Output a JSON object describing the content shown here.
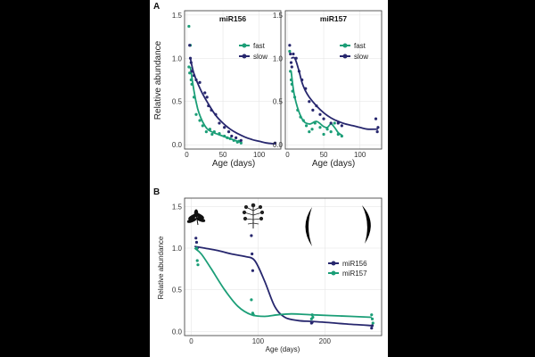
{
  "colors": {
    "fast": "#1b9e77",
    "slow": "#27276e",
    "miR156": "#27276e",
    "miR157": "#1b9e77"
  },
  "panel_labels": {
    "a": "A",
    "b": "B"
  },
  "chart_data": [
    {
      "id": "A1",
      "type": "scatter",
      "title": "miR156",
      "xlabel": "Age (days)",
      "ylabel": "Relative abundance",
      "xlim": [
        -3,
        130
      ],
      "ylim": [
        -0.05,
        1.55
      ],
      "xticks": [
        0,
        50,
        100
      ],
      "yticks": [
        0.0,
        0.5,
        1.0,
        1.5
      ],
      "yticklabels": [
        "0.0",
        "0.5",
        "1.0",
        "1.5"
      ],
      "legend_position": "top-right",
      "series": [
        {
          "name": "fast",
          "color": "#1b9e77",
          "x": [
            3,
            3,
            4,
            5,
            6,
            7,
            10,
            13,
            18,
            22,
            27,
            32,
            35,
            38,
            45,
            52,
            56,
            60,
            65,
            70,
            72,
            75
          ],
          "y": [
            1.37,
            0.9,
            0.83,
            1.15,
            0.75,
            0.7,
            0.55,
            0.35,
            0.28,
            0.22,
            0.15,
            0.18,
            0.12,
            0.15,
            0.13,
            0.1,
            0.08,
            0.07,
            0.05,
            0.03,
            0.04,
            0.02
          ],
          "fit_x": [
            5,
            10,
            15,
            20,
            25,
            30,
            40,
            50,
            60,
            70,
            75
          ],
          "fit_y": [
            0.9,
            0.62,
            0.42,
            0.3,
            0.22,
            0.17,
            0.13,
            0.1,
            0.07,
            0.04,
            0.03
          ]
        },
        {
          "name": "slow",
          "color": "#27276e",
          "x": [
            4,
            5,
            6,
            7,
            10,
            13,
            18,
            25,
            28,
            30,
            34,
            40,
            45,
            52,
            58,
            62,
            68,
            75,
            122
          ],
          "y": [
            1.15,
            1.0,
            0.95,
            0.85,
            0.8,
            0.75,
            0.72,
            0.6,
            0.55,
            0.45,
            0.4,
            0.35,
            0.25,
            0.2,
            0.15,
            0.1,
            0.08,
            0.05,
            0.02
          ],
          "fit_x": [
            5,
            10,
            20,
            30,
            40,
            50,
            60,
            70,
            80,
            90,
            100,
            110,
            122
          ],
          "fit_y": [
            1.0,
            0.82,
            0.62,
            0.47,
            0.34,
            0.25,
            0.18,
            0.13,
            0.09,
            0.06,
            0.04,
            0.02,
            0.01
          ]
        }
      ]
    },
    {
      "id": "A2",
      "type": "scatter",
      "title": "miR157",
      "xlabel": "Age (days)",
      "ylabel": "",
      "xlim": [
        -3,
        130
      ],
      "ylim": [
        -0.05,
        1.55
      ],
      "xticks": [
        0,
        50,
        100
      ],
      "yticks": [
        0.0,
        0.5,
        1.0,
        1.5
      ],
      "yticklabels": [
        "0.0",
        "0.5",
        "1.0",
        "1.5"
      ],
      "legend_position": "top-right",
      "series": [
        {
          "name": "fast",
          "color": "#1b9e77",
          "x": [
            3,
            4,
            5,
            6,
            7,
            10,
            14,
            18,
            22,
            26,
            30,
            34,
            38,
            45,
            50,
            55,
            60,
            65,
            70,
            75
          ],
          "y": [
            1.08,
            0.85,
            0.75,
            0.7,
            0.62,
            0.55,
            0.4,
            0.32,
            0.28,
            0.22,
            0.15,
            0.18,
            0.25,
            0.2,
            0.12,
            0.18,
            0.15,
            0.25,
            0.12,
            0.1
          ],
          "fit_x": [
            5,
            10,
            20,
            30,
            40,
            50,
            55,
            60,
            65,
            70,
            75
          ],
          "fit_y": [
            0.85,
            0.55,
            0.3,
            0.24,
            0.27,
            0.21,
            0.2,
            0.24,
            0.2,
            0.14,
            0.11
          ]
        },
        {
          "name": "slow",
          "color": "#27276e",
          "x": [
            3,
            4,
            5,
            6,
            8,
            12,
            16,
            20,
            25,
            30,
            35,
            40,
            45,
            50,
            60,
            70,
            75,
            122,
            124,
            125
          ],
          "y": [
            1.15,
            1.05,
            0.95,
            0.9,
            1.05,
            1.0,
            0.85,
            0.75,
            0.65,
            0.5,
            0.4,
            0.45,
            0.35,
            0.3,
            0.25,
            0.25,
            0.22,
            0.3,
            0.15,
            0.2
          ],
          "fit_x": [
            5,
            10,
            15,
            20,
            25,
            30,
            40,
            50,
            60,
            70,
            80,
            90,
            100,
            110,
            125
          ],
          "fit_y": [
            1.0,
            1.0,
            0.88,
            0.72,
            0.62,
            0.55,
            0.45,
            0.37,
            0.31,
            0.27,
            0.24,
            0.22,
            0.2,
            0.18,
            0.18
          ]
        }
      ]
    },
    {
      "id": "B",
      "type": "scatter",
      "title": "",
      "xlabel": "Age (days)",
      "ylabel": "Relative abundance",
      "xlim": [
        -10,
        285
      ],
      "ylim": [
        -0.05,
        1.6
      ],
      "xticks": [
        0,
        100,
        200
      ],
      "yticks": [
        0.0,
        0.5,
        1.0,
        1.5
      ],
      "yticklabels": [
        "0.0",
        "0.5",
        "1.0",
        "1.5"
      ],
      "legend_position": "right",
      "series": [
        {
          "name": "miR156",
          "color": "#27276e",
          "x": [
            7,
            8,
            9,
            90,
            91,
            92,
            180,
            181,
            270,
            271
          ],
          "y": [
            1.12,
            1.07,
            1.0,
            1.15,
            0.93,
            0.73,
            0.1,
            0.11,
            0.04,
            0.07
          ],
          "fit_x": [
            5,
            20,
            40,
            60,
            80,
            95,
            110,
            125,
            140,
            160,
            180,
            200,
            230,
            270
          ],
          "fit_y": [
            1.02,
            1.0,
            0.97,
            0.93,
            0.9,
            0.85,
            0.6,
            0.3,
            0.17,
            0.13,
            0.12,
            0.11,
            0.09,
            0.07
          ]
        },
        {
          "name": "miR157",
          "color": "#1b9e77",
          "x": [
            8,
            9,
            10,
            90,
            92,
            93,
            180,
            181,
            182,
            270,
            271,
            272
          ],
          "y": [
            1.0,
            0.85,
            0.8,
            0.38,
            0.22,
            0.2,
            0.15,
            0.2,
            0.17,
            0.2,
            0.15,
            0.1
          ],
          "fit_x": [
            5,
            15,
            30,
            50,
            70,
            90,
            110,
            130,
            150,
            180,
            210,
            240,
            270
          ],
          "fit_y": [
            1.0,
            0.93,
            0.75,
            0.5,
            0.3,
            0.2,
            0.18,
            0.2,
            0.21,
            0.2,
            0.19,
            0.18,
            0.17
          ]
        }
      ]
    }
  ],
  "leaf_icons": [
    "juvenile-compound-leaf",
    "adult-bipinnate-leaf",
    "phyllode-left",
    "phyllode-right"
  ]
}
